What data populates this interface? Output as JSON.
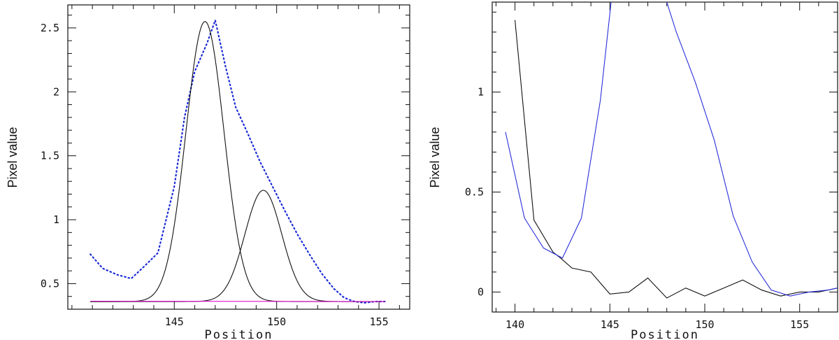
{
  "chart_data": [
    {
      "type": "line",
      "title": "",
      "xlabel": "Position",
      "ylabel": "Pixel value",
      "xlim": [
        139.8,
        156.5
      ],
      "ylim": [
        0.3,
        2.68
      ],
      "xticks_major": [
        145,
        150,
        155
      ],
      "xticks_minor_step": 1,
      "yticks_major": [
        0.5,
        1,
        1.5,
        2,
        2.5
      ],
      "yticks_minor_step": 0.1,
      "ytick_labels": [
        "0.5",
        "1",
        "1.5",
        "2",
        "2.5"
      ],
      "xtick_labels": [
        "145",
        "150",
        "155"
      ],
      "series": [
        {
          "style": "dotted",
          "color": "#1a2bd6",
          "x": [
            140.9,
            141.5,
            142.2,
            142.9,
            143.5,
            144.2,
            145.0,
            145.5,
            146.0,
            146.6,
            147.0,
            147.5,
            148.0,
            148.6,
            149.2,
            149.8,
            150.4,
            151.0,
            151.6,
            152.2,
            152.8,
            153.3,
            153.8,
            154.3,
            154.8,
            155.3
          ],
          "y": [
            0.73,
            0.62,
            0.57,
            0.54,
            0.63,
            0.74,
            1.26,
            1.8,
            2.16,
            2.38,
            2.56,
            2.2,
            1.88,
            1.67,
            1.45,
            1.26,
            1.07,
            0.89,
            0.73,
            0.58,
            0.46,
            0.39,
            0.36,
            0.35,
            0.36,
            0.36
          ]
        },
        {
          "style": "solid",
          "color": "#111111",
          "gaussian": {
            "amplitude": 2.19,
            "center": 146.5,
            "sigma": 0.93,
            "baseline": 0.36
          },
          "x_range": [
            140.9,
            155.3
          ]
        },
        {
          "style": "solid",
          "color": "#111111",
          "gaussian": {
            "amplitude": 0.87,
            "center": 149.35,
            "sigma": 0.9,
            "baseline": 0.36
          },
          "x_range": [
            140.9,
            155.3
          ]
        },
        {
          "style": "solid",
          "color": "#e012d0",
          "x": [
            140.9,
            155.3
          ],
          "y": [
            0.363,
            0.36
          ]
        }
      ]
    },
    {
      "type": "line",
      "title": "",
      "xlabel": "Position",
      "ylabel": "Pixel value",
      "xlim": [
        138.8,
        157.0
      ],
      "ylim": [
        -0.1,
        1.45
      ],
      "xticks_major": [
        140,
        145,
        150,
        155
      ],
      "xticks_minor_step": 1,
      "yticks_major": [
        0,
        0.5,
        1
      ],
      "yticks_minor_step": 0.1,
      "ytick_labels": [
        "0",
        "0.5",
        "1"
      ],
      "xtick_labels": [
        "140",
        "145",
        "150",
        "155"
      ],
      "series": [
        {
          "style": "solid",
          "color": "#111111",
          "x": [
            140,
            141,
            142,
            142.4,
            143,
            144,
            145,
            146,
            147,
            148,
            149,
            150,
            151,
            152,
            153,
            154,
            155,
            156,
            157
          ],
          "y": [
            1.36,
            0.36,
            0.2,
            0.17,
            0.12,
            0.1,
            -0.01,
            0.0,
            0.07,
            -0.03,
            0.02,
            -0.02,
            0.02,
            0.06,
            0.01,
            -0.02,
            0.0,
            0.0,
            0.02
          ]
        },
        {
          "style": "solid",
          "color": "#2a2fd8",
          "x": [
            139.5,
            140.5,
            141.5,
            142.5,
            143.5,
            144.5,
            145.1,
            147.9,
            148.5,
            149.5,
            150.5,
            151.5,
            152.5,
            153.5,
            154.5,
            155.5,
            156.5,
            157.0
          ],
          "y": [
            0.8,
            0.37,
            0.22,
            0.17,
            0.37,
            0.96,
            1.48,
            1.48,
            1.3,
            1.05,
            0.76,
            0.38,
            0.15,
            0.01,
            -0.02,
            0.0,
            0.01,
            0.02
          ]
        }
      ]
    }
  ]
}
